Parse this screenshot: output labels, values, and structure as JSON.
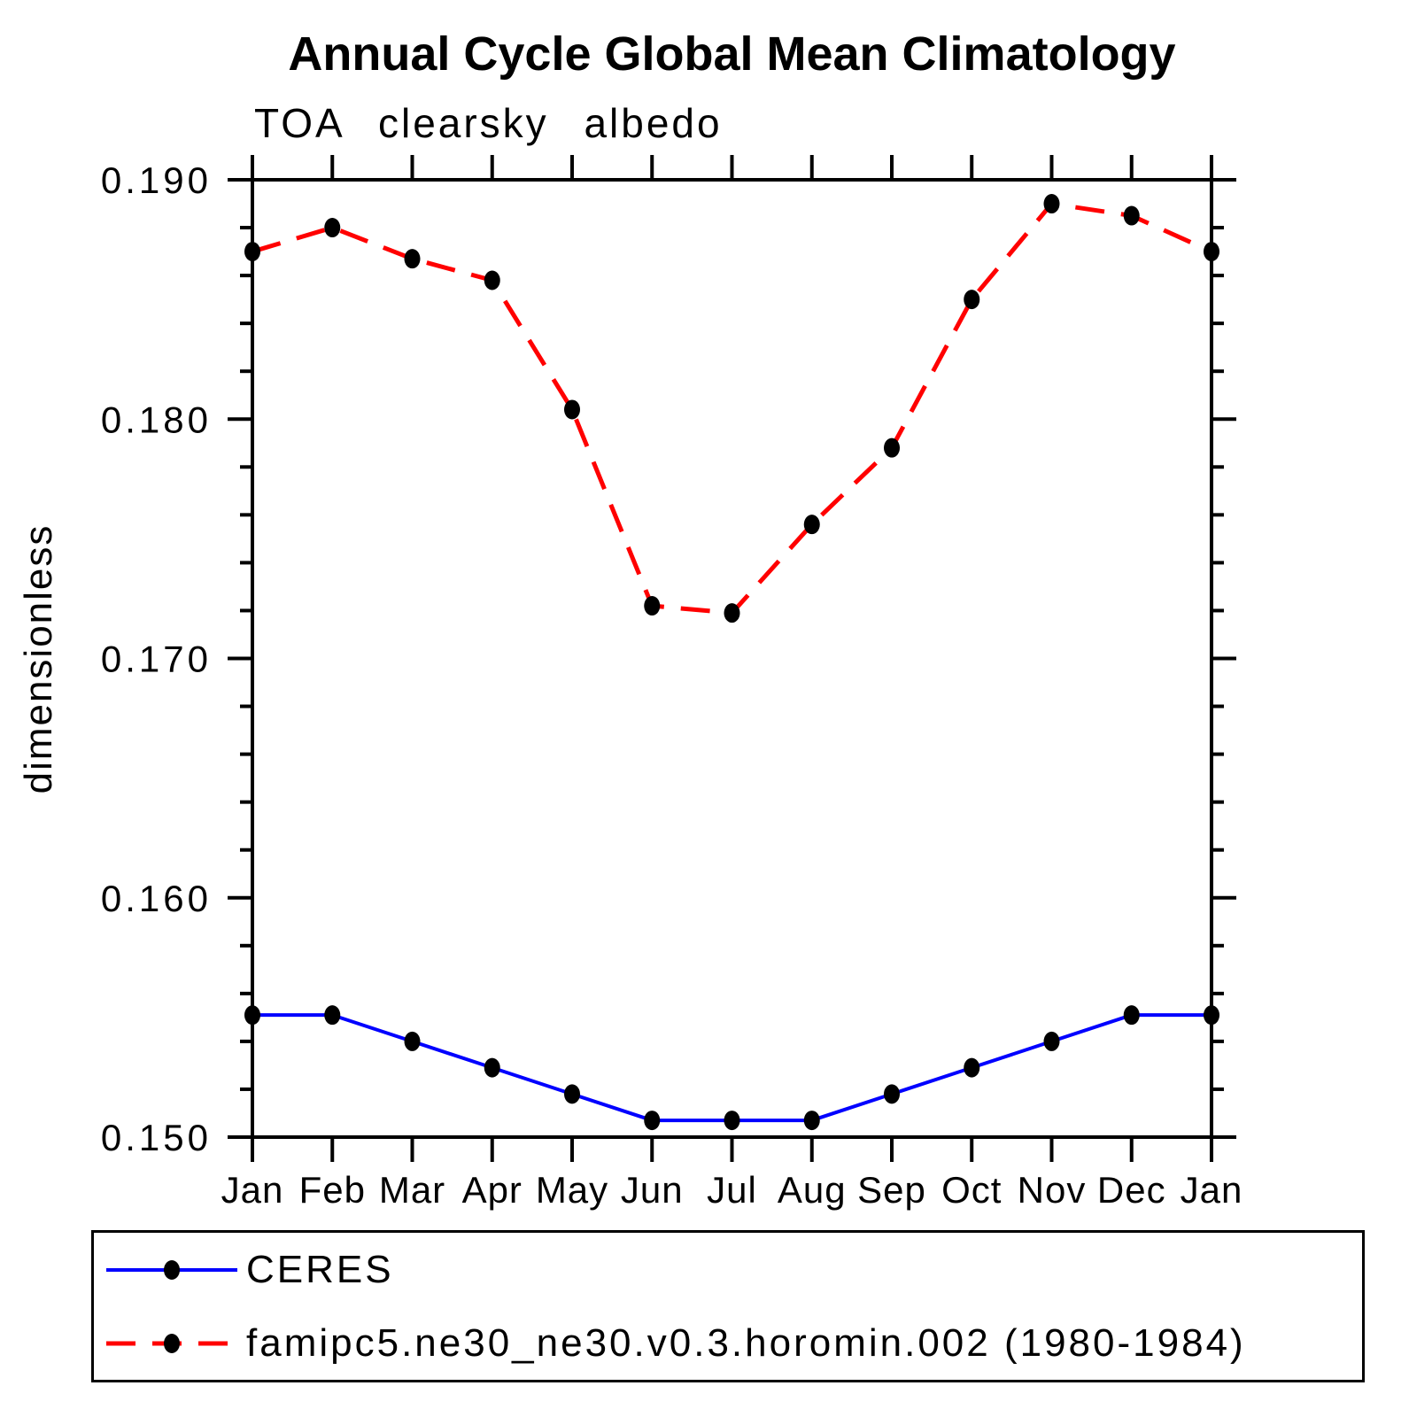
{
  "title": "Annual Cycle Global Mean Climatology",
  "chart_data": {
    "type": "line",
    "title": "Annual Cycle Global Mean Climatology",
    "subtitle": "TOA clearsky albedo",
    "ylabel": "dimensionless",
    "xlabel": "",
    "categories": [
      "Jan",
      "Feb",
      "Mar",
      "Apr",
      "May",
      "Jun",
      "Jul",
      "Aug",
      "Sep",
      "Oct",
      "Nov",
      "Dec",
      "Jan"
    ],
    "ylim": [
      0.15,
      0.19
    ],
    "y_major_step": 0.01,
    "y_minor_step": 0.002,
    "y_tick_labels": [
      "0.150",
      "0.160",
      "0.170",
      "0.180",
      "0.190"
    ],
    "grid": false,
    "legend_position": "bottom",
    "marker_color": "#000000",
    "axis_color": "#000000",
    "series": [
      {
        "name": "CERES",
        "color": "#0000ff",
        "style": "solid",
        "values": [
          0.1551,
          0.1551,
          0.154,
          0.1529,
          0.1518,
          0.1507,
          0.1507,
          0.1507,
          0.1518,
          0.1529,
          0.154,
          0.1551,
          0.1551
        ]
      },
      {
        "name": "famipc5.ne30_ne30.v0.3.horomin.002 (1980-1984)",
        "color": "#ff0000",
        "style": "dashed",
        "values": [
          0.187,
          0.188,
          0.1867,
          0.1858,
          0.1804,
          0.1722,
          0.1719,
          0.1756,
          0.1788,
          0.185,
          0.189,
          0.1885,
          0.187
        ]
      }
    ]
  }
}
